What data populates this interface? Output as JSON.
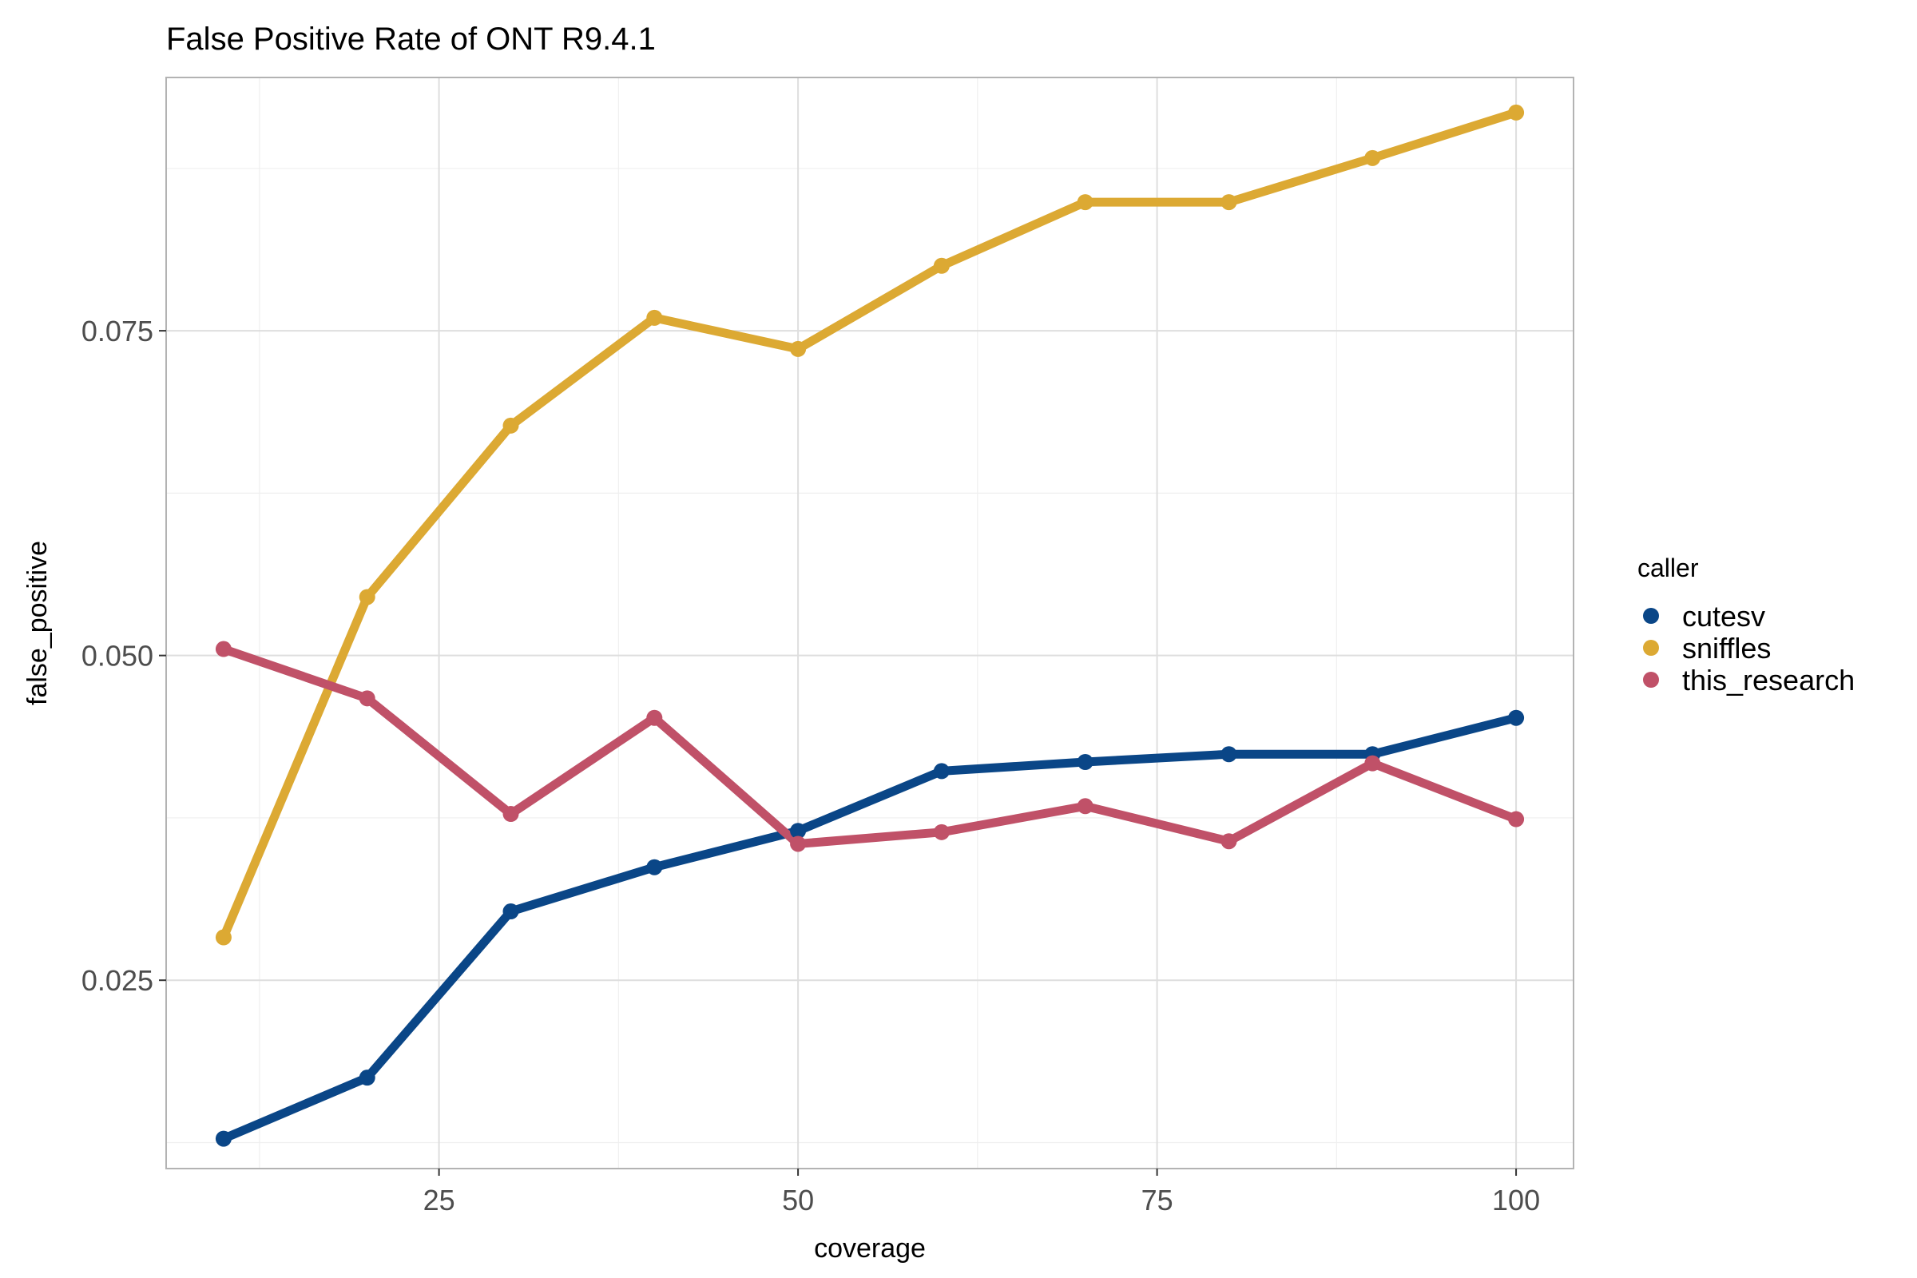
{
  "chart_data": {
    "type": "line",
    "title": "False Positive Rate of ONT R9.4.1",
    "xlabel": "coverage",
    "ylabel": "false_positive",
    "xlim": [
      6,
      104
    ],
    "ylim": [
      0.0105,
      0.0945
    ],
    "x_ticks": [
      {
        "value": 25,
        "label": "25"
      },
      {
        "value": 50,
        "label": "50"
      },
      {
        "value": 75,
        "label": "75"
      },
      {
        "value": 100,
        "label": "100"
      }
    ],
    "y_ticks": [
      {
        "value": 0.025,
        "label": "0.025"
      },
      {
        "value": 0.05,
        "label": "0.050"
      },
      {
        "value": 0.075,
        "label": "0.075"
      }
    ],
    "x_minor": [
      12.5,
      37.5,
      62.5,
      87.5
    ],
    "y_minor": [
      0.0125,
      0.0375,
      0.0625,
      0.0875
    ],
    "grid": true,
    "legend": {
      "title": "caller",
      "position": "right"
    },
    "x": [
      10,
      20,
      30,
      40,
      50,
      60,
      70,
      80,
      90,
      100
    ],
    "series": [
      {
        "name": "cutesv",
        "color": "#0a4687",
        "values": [
          0.0128,
          0.0175,
          0.0303,
          0.0337,
          0.0365,
          0.0411,
          0.0418,
          0.0424,
          0.0424,
          0.0452
        ]
      },
      {
        "name": "sniffles",
        "color": "#dca933",
        "values": [
          0.0283,
          0.0545,
          0.0677,
          0.076,
          0.0736,
          0.08,
          0.0849,
          0.0849,
          0.0883,
          0.0918
        ]
      },
      {
        "name": "this_research",
        "color": "#c05168",
        "values": [
          0.0505,
          0.0467,
          0.0378,
          0.0452,
          0.0355,
          0.0364,
          0.0384,
          0.0357,
          0.0417,
          0.0374
        ]
      }
    ]
  }
}
